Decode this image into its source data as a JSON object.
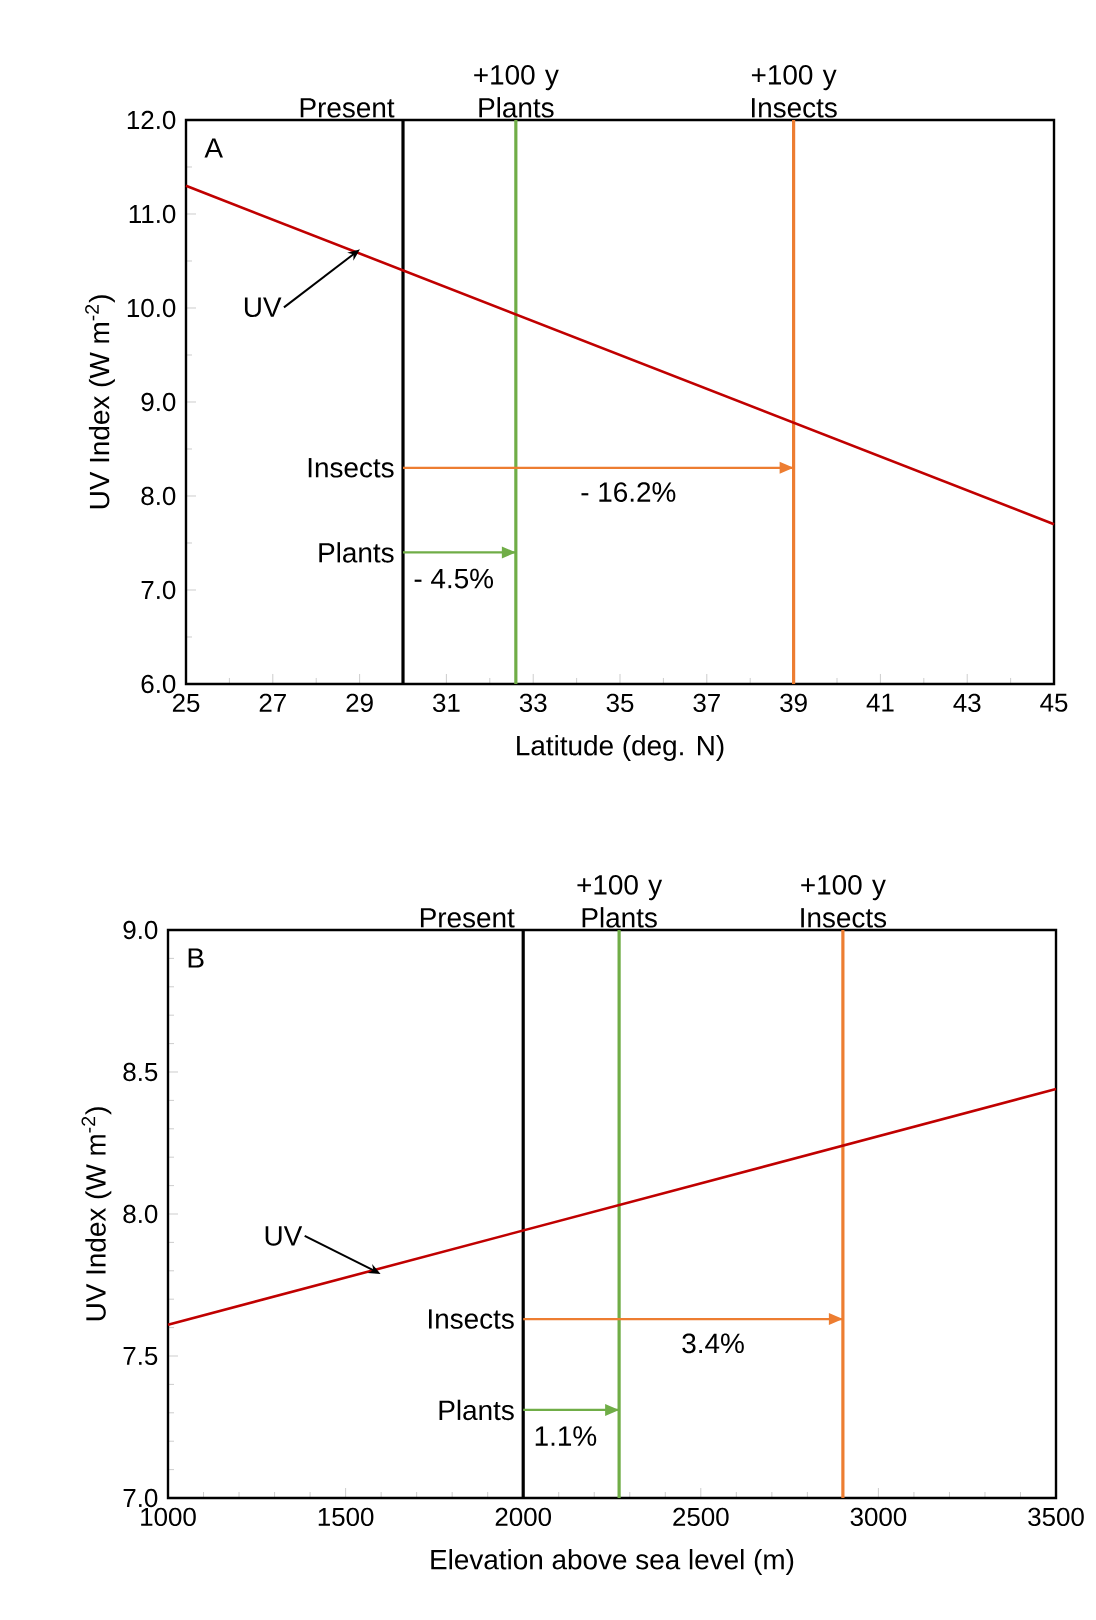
{
  "chart_data": [
    {
      "type": "line",
      "xlabel": "Latitude (deg. N)",
      "ylabel": "UV Index (W m$^{-2}$)",
      "xlim": [
        25,
        45
      ],
      "ylim": [
        6,
        12
      ],
      "xticks": [
        25,
        27,
        29,
        31,
        33,
        35,
        37,
        39,
        41,
        43,
        45
      ],
      "yticks": [
        {
          "value": 6,
          "label": "6.0"
        },
        {
          "value": 7,
          "label": "7.0"
        },
        {
          "value": 8,
          "label": "8.0"
        },
        {
          "value": 9,
          "label": "9.0"
        },
        {
          "value": 10,
          "label": "10.0"
        },
        {
          "value": 11,
          "label": "11.0"
        },
        {
          "value": 12,
          "label": "12.0"
        }
      ],
      "series": [
        {
          "color": "#c00000",
          "x": [
            25,
            45
          ],
          "values": [
            11.3,
            7.7
          ]
        },
        {
          "name": "Insects",
          "color": "#ed7d31",
          "x": [
            30,
            39
          ],
          "values": [
            8.3,
            8.3
          ]
        },
        {
          "name": "Plants",
          "color": "#70ad47",
          "x": [
            30,
            32.6
          ],
          "values": [
            7.4,
            7.4
          ]
        }
      ],
      "ref_lines": [
        {
          "axis": "x",
          "value": 30,
          "label": "Present",
          "color": "#000000"
        },
        {
          "axis": "x",
          "value": 32.6,
          "label": "+100 y Plants",
          "color": "#70ad47"
        },
        {
          "axis": "x",
          "value": 39,
          "label": "+100 y Insects",
          "color": "#ed7d31"
        }
      ],
      "annotations": [
        "A",
        {
          "text": "UV",
          "x": 29.1,
          "y": 10.56
        },
        "- 16.2%",
        "- 4.5%"
      ]
    },
    {
      "type": "line",
      "xlabel": "Elevation above sea level (m)",
      "ylabel": "UV Index (W m$^{-2}$)",
      "xlim": [
        1000,
        3500
      ],
      "ylim": [
        7,
        9
      ],
      "xticks": [
        1000,
        1500,
        2000,
        2500,
        3000,
        3500
      ],
      "yticks": [
        {
          "value": 7,
          "label": "7.0"
        },
        7.5,
        {
          "value": 8,
          "label": "8.0"
        },
        8.5,
        {
          "value": 9,
          "label": "9.0"
        }
      ],
      "series": [
        {
          "color": "#c00000",
          "x": [
            1000,
            3500
          ],
          "values": [
            7.61,
            8.44
          ]
        },
        {
          "name": "Insects",
          "color": "#ed7d31",
          "x": [
            2000,
            2900
          ],
          "values": [
            7.63,
            7.63
          ]
        },
        {
          "name": "Plants",
          "color": "#70ad47",
          "x": [
            2000,
            2270
          ],
          "values": [
            7.31,
            7.31
          ]
        }
      ],
      "ref_lines": [
        {
          "axis": "x",
          "value": 2000,
          "label": "Present",
          "color": "#000000"
        },
        {
          "axis": "x",
          "value": 2270,
          "label": "+100 y Plants",
          "color": "#70ad47"
        },
        {
          "axis": "x",
          "value": 2900,
          "label": "+100 y Insects",
          "color": "#ed7d31"
        }
      ],
      "annotations": [
        "B",
        {
          "text": "UV",
          "x": 1610,
          "y": 7.81
        },
        "3.4%",
        "1.1%"
      ]
    }
  ]
}
